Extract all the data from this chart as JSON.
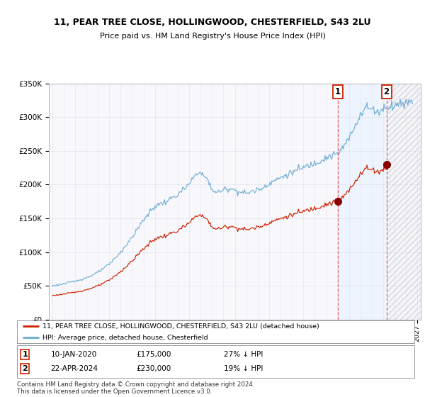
{
  "title1": "11, PEAR TREE CLOSE, HOLLINGWOOD, CHESTERFIELD, S43 2LU",
  "title2": "Price paid vs. HM Land Registry's House Price Index (HPI)",
  "ylim": [
    0,
    350000
  ],
  "yticks": [
    0,
    50000,
    100000,
    150000,
    200000,
    250000,
    300000,
    350000
  ],
  "ytick_labels": [
    "£0",
    "£50K",
    "£100K",
    "£150K",
    "£200K",
    "£250K",
    "£300K",
    "£350K"
  ],
  "xstart_year": 1995,
  "xend_year": 2027,
  "xlim_left": 1994.7,
  "xlim_right": 2027.3,
  "hpi_color": "#6aaad4",
  "price_color": "#cc2200",
  "sale1_date": 2020.04,
  "sale1_price": 175000,
  "sale2_date": 2024.3,
  "sale2_price": 230000,
  "vline_color": "#dd4444",
  "marker_color": "#880000",
  "span_color": "#ddeeff",
  "hatch_facecolor": "#f0f0f8",
  "legend_line1": "11, PEAR TREE CLOSE, HOLLINGWOOD, CHESTERFIELD, S43 2LU (detached house)",
  "legend_line2": "HPI: Average price, detached house, Chesterfield",
  "table_row1": [
    "1",
    "10-JAN-2020",
    "£175,000",
    "27% ↓ HPI"
  ],
  "table_row2": [
    "2",
    "22-APR-2024",
    "£230,000",
    "19% ↓ HPI"
  ],
  "footer": "Contains HM Land Registry data © Crown copyright and database right 2024.\nThis data is licensed under the Open Government Licence v3.0.",
  "background_color": "#ffffff",
  "plot_bg_color": "#f8f8fc",
  "grid_color": "#ccccdd"
}
